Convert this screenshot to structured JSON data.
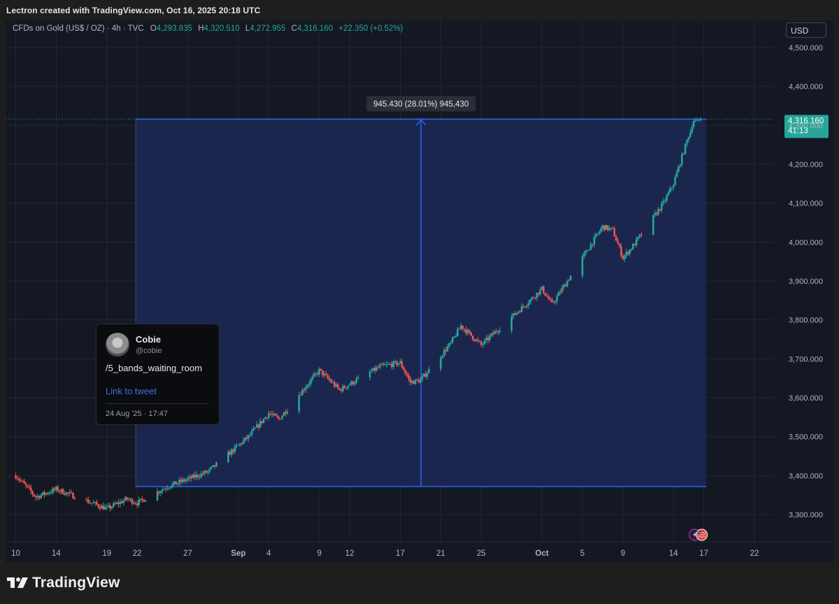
{
  "caption": "Lectron created with TradingView.com, Oct 16, 2025 20:18 UTC",
  "legend": {
    "symbol": "CFDs on Gold (US$ / OZ) · 4h · TVC",
    "o_label": "O",
    "o_value": "4,293.835",
    "h_label": "H",
    "h_value": "4,320.510",
    "l_label": "L",
    "l_value": "4,272.955",
    "c_label": "C",
    "c_value": "4,316.160",
    "change": "+22.350 (+0.52%)"
  },
  "currency": "USD",
  "price_tag": {
    "price": "4,316.160",
    "countdown": "41:13"
  },
  "measure_label": "945.430 (28.01%) 945,430",
  "tweet": {
    "name": "Cobie",
    "handle": "@cobie",
    "text": "/5_bands_waiting_room",
    "link": "Link to tweet",
    "date": "24 Aug '25 · 17:47"
  },
  "branding": "TradingView",
  "colors": {
    "up": "#26a69a",
    "down": "#ef5350",
    "background": "#141823",
    "measure": "#2962ff",
    "measure_fill": "#1a2750"
  },
  "chart_data": {
    "type": "candlestick",
    "title": "CFDs on Gold (US$ / OZ) · 4h · TVC",
    "y_ticks": [
      "4,500.000",
      "4,400.000",
      "4,300.000",
      "4,200.000",
      "4,100.000",
      "4,000.000",
      "3,900.000",
      "3,800.000",
      "3,700.000",
      "3,600.000",
      "3,500.000",
      "3,400.000",
      "3,300.000"
    ],
    "y_tick_values": [
      4500,
      4400,
      4300,
      4200,
      4100,
      4000,
      3900,
      3800,
      3700,
      3600,
      3500,
      3400,
      3300
    ],
    "x_ticks": [
      "10",
      "14",
      "19",
      "22",
      "27",
      "Sep",
      "4",
      "9",
      "12",
      "17",
      "21",
      "25",
      "Oct",
      "5",
      "9",
      "14",
      "17",
      "22"
    ],
    "ylim": [
      3230,
      4570
    ],
    "grid": true,
    "anchor_points": [
      {
        "x": "2025-08-10",
        "y": 3400
      },
      {
        "x": "2025-08-12",
        "y": 3345
      },
      {
        "x": "2025-08-14",
        "y": 3365
      },
      {
        "x": "2025-08-17",
        "y": 3335
      },
      {
        "x": "2025-08-19",
        "y": 3315
      },
      {
        "x": "2025-08-21",
        "y": 3340
      },
      {
        "x": "2025-08-22",
        "y": 3330
      },
      {
        "x": "2025-08-25",
        "y": 3372
      },
      {
        "x": "2025-08-29",
        "y": 3410
      },
      {
        "x": "2025-09-02",
        "y": 3500
      },
      {
        "x": "2025-09-04",
        "y": 3560
      },
      {
        "x": "2025-09-05",
        "y": 3545
      },
      {
        "x": "2025-09-08",
        "y": 3640
      },
      {
        "x": "2025-09-09",
        "y": 3670
      },
      {
        "x": "2025-09-11",
        "y": 3620
      },
      {
        "x": "2025-09-15",
        "y": 3680
      },
      {
        "x": "2025-09-17",
        "y": 3690
      },
      {
        "x": "2025-09-18",
        "y": 3640
      },
      {
        "x": "2025-09-19",
        "y": 3645
      },
      {
        "x": "2025-09-22",
        "y": 3740
      },
      {
        "x": "2025-09-23",
        "y": 3785
      },
      {
        "x": "2025-09-25",
        "y": 3735
      },
      {
        "x": "2025-09-26",
        "y": 3760
      },
      {
        "x": "2025-09-30",
        "y": 3855
      },
      {
        "x": "2025-10-01",
        "y": 3880
      },
      {
        "x": "2025-10-02",
        "y": 3840
      },
      {
        "x": "2025-10-03",
        "y": 3880
      },
      {
        "x": "2025-10-07",
        "y": 4040
      },
      {
        "x": "2025-10-08",
        "y": 4030
      },
      {
        "x": "2025-10-09",
        "y": 3960
      },
      {
        "x": "2025-10-10",
        "y": 3990
      },
      {
        "x": "2025-10-13",
        "y": 4100
      },
      {
        "x": "2025-10-14",
        "y": 4150
      },
      {
        "x": "2025-10-16",
        "y": 4316
      }
    ],
    "measure": {
      "from": "2025-08-22",
      "to": "2025-10-16",
      "low": 3372,
      "high": 4316,
      "label": "945.430 (28.01%) 945,430"
    },
    "current_price": 4316.16
  }
}
